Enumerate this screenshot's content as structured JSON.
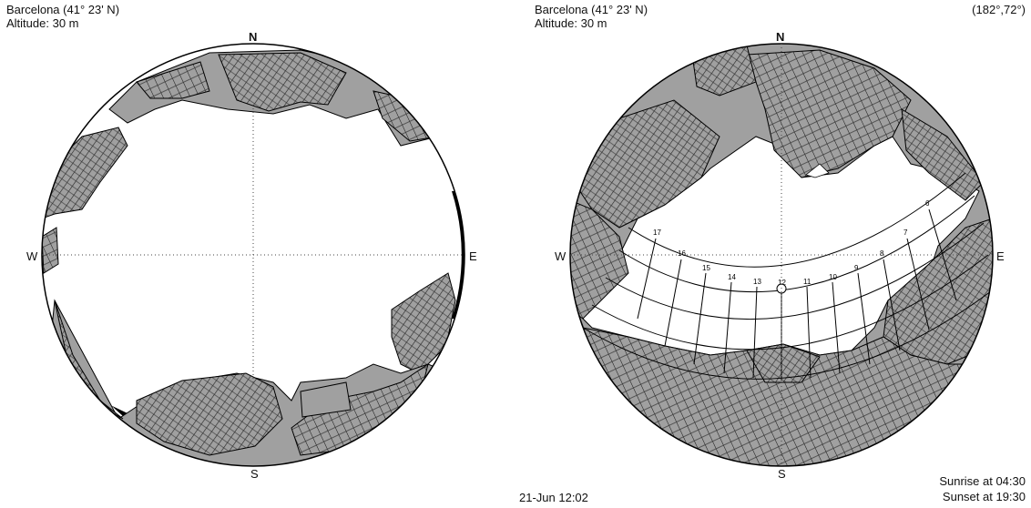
{
  "left_panel": {
    "location": "Barcelona (41° 23' N)",
    "altitude": "Altitude: 30 m",
    "cardinals": {
      "n": "N",
      "s": "S",
      "w": "W",
      "e": "E"
    }
  },
  "right_panel": {
    "location": "Barcelona (41° 23' N)",
    "altitude": "Altitude: 30 m",
    "cursor_readout": "(182°,72°)",
    "cardinals": {
      "n": "N",
      "s": "S",
      "w": "W",
      "e": "E"
    },
    "datetime": "21-Jun 12:02",
    "sunrise": "Sunrise at 04:30",
    "sunset": "Sunset at 19:30",
    "hour_labels": [
      "17",
      "16",
      "15",
      "14",
      "13",
      "12",
      "11",
      "10",
      "9",
      "8",
      "7",
      "6"
    ]
  },
  "colors": {
    "obstruction": "#a0a0a0",
    "outline": "#000000",
    "sky": "#ffffff"
  }
}
